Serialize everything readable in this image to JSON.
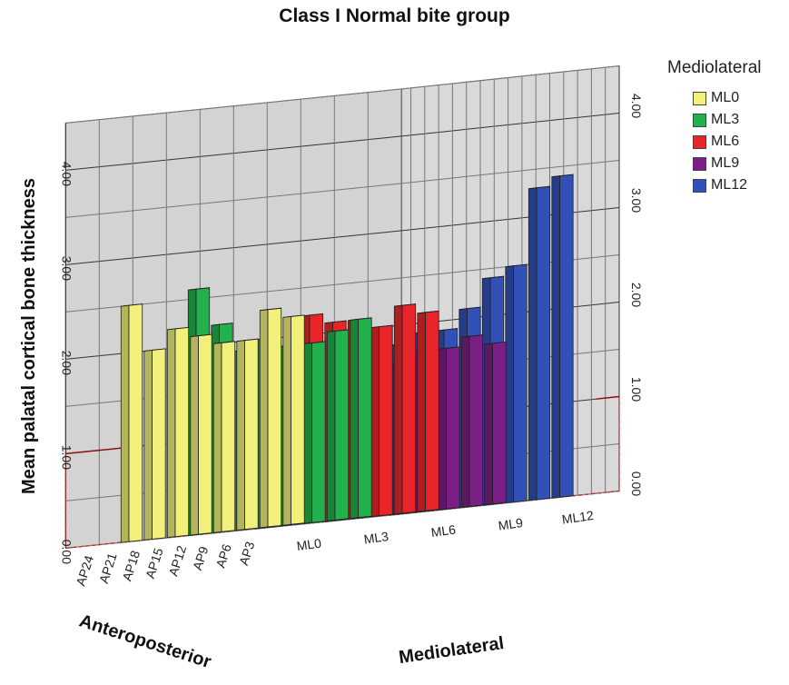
{
  "chart_data": {
    "type": "bar",
    "title": "Class I Normal bite group",
    "ylabel": "Mean palatal cortical bone thickness",
    "xlabel": "Mediolateral",
    "zlabel": "Anteroposterior",
    "ylim": [
      0,
      4.5
    ],
    "y_ticks": [
      "0.00",
      "1.00",
      "2.00",
      "3.00",
      "4.00"
    ],
    "ml_categories": [
      "ML0",
      "ML3",
      "ML6",
      "ML9",
      "ML12"
    ],
    "ap_categories": [
      "AP3",
      "AP6",
      "AP9",
      "AP12",
      "AP15",
      "AP18",
      "AP21",
      "AP24"
    ],
    "reference_line": 1.0,
    "grid": true,
    "legend_position": "top-right",
    "series": [
      {
        "name": "ML0",
        "color": "#f0f07a",
        "values": [
          2.2,
          2.3,
          2.0,
          2.0,
          2.1,
          2.2,
          2.0,
          2.5
        ]
      },
      {
        "name": "ML3",
        "color": "#22b14c",
        "values": [
          2.1,
          2.0,
          1.9,
          1.9,
          2.0,
          1.9,
          2.2,
          2.6
        ]
      },
      {
        "name": "ML6",
        "color": "#e8262a",
        "values": [
          2.1,
          2.2,
          2.0,
          2.1,
          2.1,
          2.2,
          1.7,
          1.6
        ]
      },
      {
        "name": "ML9",
        "color": "#7b1f87",
        "values": [
          1.7,
          1.8,
          1.7,
          1.7,
          1.6,
          1.7,
          1.6,
          1.5
        ]
      },
      {
        "name": "ML12",
        "color": "#3151b7",
        "values": [
          3.4,
          3.3,
          2.5,
          2.4,
          2.1,
          1.9,
          1.9,
          1.8
        ]
      }
    ]
  },
  "legend": {
    "title": "Mediolateral",
    "items": [
      {
        "label": "ML0",
        "color": "#f0f07a"
      },
      {
        "label": "ML3",
        "color": "#22b14c"
      },
      {
        "label": "ML6",
        "color": "#e8262a"
      },
      {
        "label": "ML9",
        "color": "#7b1f87"
      },
      {
        "label": "ML12",
        "color": "#3151b7"
      }
    ]
  }
}
